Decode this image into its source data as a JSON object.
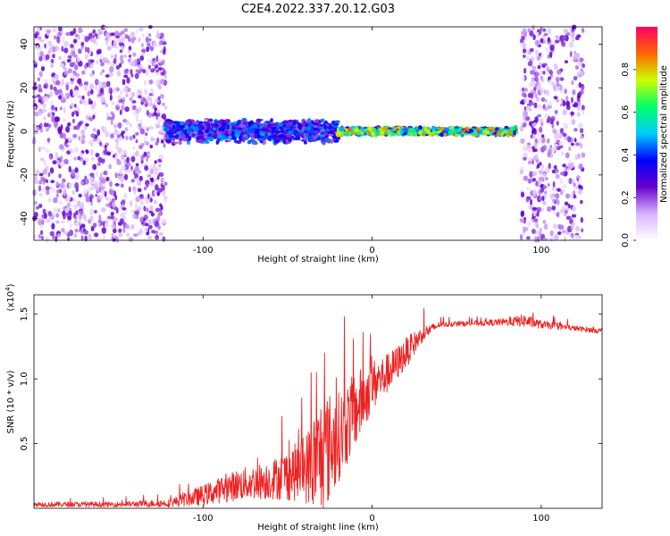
{
  "title": "C2E4.2022.337.20.12.G03",
  "chart_data": [
    {
      "type": "heatmap",
      "xlabel": "Height of straight line (km)",
      "ylabel": "Frequency (Hz)",
      "xlim": [
        -200,
        136
      ],
      "ylim": [
        -50,
        48
      ],
      "xticks": [
        -100,
        0,
        100
      ],
      "xtick_labels": [
        "-100",
        "0",
        "100"
      ],
      "yticks": [
        -40,
        -20,
        0,
        20,
        40
      ],
      "ytick_labels": [
        "-40",
        "-20",
        "0",
        "20",
        "40"
      ],
      "colorbar": {
        "label": "Normalized spectral amplitude",
        "range": [
          0,
          1
        ],
        "ticks": [
          0.0,
          0.2,
          0.4,
          0.6,
          0.8
        ],
        "tick_labels": [
          "0.0",
          "0.2",
          "0.4",
          "0.6",
          "0.8"
        ],
        "colors": [
          "#ffffff",
          "#d9b3ff",
          "#6600cc",
          "#0000ff",
          "#00ccff",
          "#00ff66",
          "#ccff00",
          "#ff6600",
          "#ff0066"
        ]
      },
      "regions": [
        {
          "kind": "noise",
          "x": [
            -200,
            -122
          ],
          "y": [
            -50,
            48
          ],
          "level": 0.15
        },
        {
          "kind": "noise",
          "x": [
            88,
            125
          ],
          "y": [
            -50,
            48
          ],
          "level": 0.15
        },
        {
          "kind": "signal",
          "x": [
            -122,
            -20
          ],
          "y_center": 0,
          "y_spread": 6,
          "level": 0.35
        },
        {
          "kind": "signal",
          "x": [
            -20,
            85
          ],
          "y_center": 0,
          "y_spread": 2,
          "level": 0.65
        }
      ]
    },
    {
      "type": "line",
      "xlabel": "Height of straight line (km)",
      "ylabel": "SNR (10 * v/v)",
      "y_multiplier": "(x10",
      "y_multiplier_exp": "4",
      "y_multiplier_end": ")",
      "xlim": [
        -200,
        136
      ],
      "ylim": [
        0,
        1.65
      ],
      "xticks": [
        -100,
        0,
        100
      ],
      "xtick_labels": [
        "-100",
        "0",
        "100"
      ],
      "yticks": [
        0.5,
        1.0,
        1.5
      ],
      "ytick_labels": [
        "0.5",
        "1.0",
        "1.5"
      ],
      "color": "#ee2222",
      "x": [
        -200,
        -150,
        -120,
        -100,
        -80,
        -60,
        -40,
        -30,
        -20,
        -10,
        0,
        10,
        20,
        30,
        40,
        60,
        80,
        90,
        100,
        120,
        136
      ],
      "values": [
        0.03,
        0.03,
        0.04,
        0.1,
        0.18,
        0.22,
        0.3,
        0.4,
        0.55,
        0.75,
        0.95,
        1.05,
        1.2,
        1.35,
        1.42,
        1.43,
        1.44,
        1.45,
        1.42,
        1.39,
        1.37
      ],
      "noise_amp": [
        0.02,
        0.02,
        0.03,
        0.08,
        0.12,
        0.15,
        0.25,
        0.5,
        0.35,
        0.3,
        0.2,
        0.15,
        0.12,
        0.06,
        0.02,
        0.02,
        0.03,
        0.05,
        0.03,
        0.02,
        0.02
      ]
    }
  ]
}
